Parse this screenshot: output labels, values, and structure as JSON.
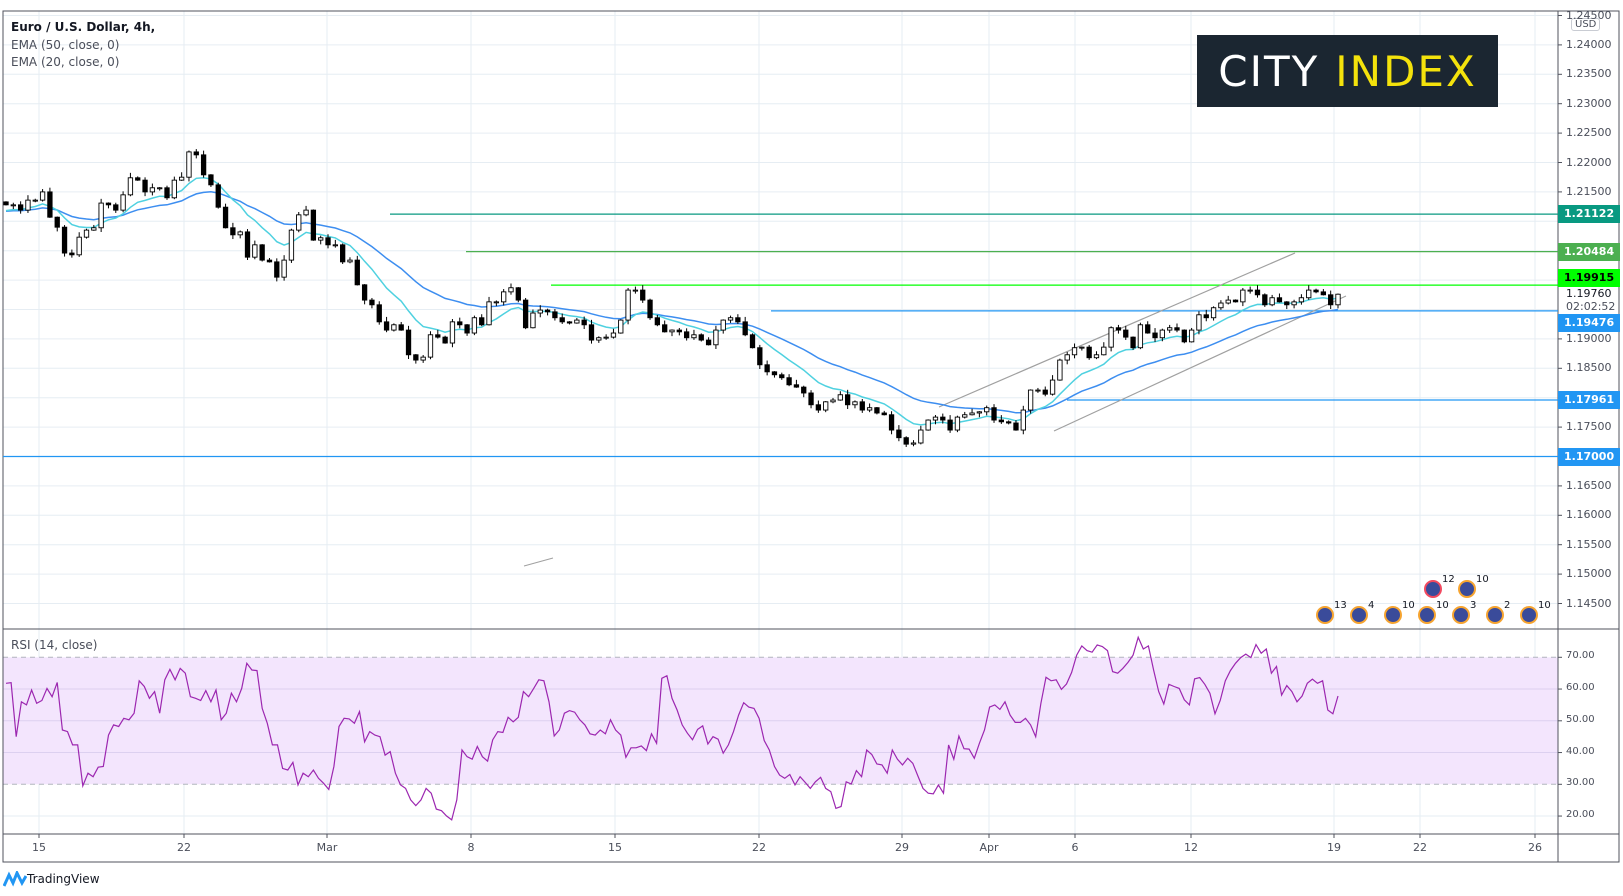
{
  "legend": {
    "title": "Euro / U.S. Dollar, 4h,",
    "ema50": "EMA (50, close, 0)",
    "ema20": "EMA (20, close, 0)",
    "rsi": "RSI (14, close)"
  },
  "logo": {
    "word1": "CITY",
    "word2": "INDEX"
  },
  "currency_badge": "USD",
  "price_axis": {
    "ticks": [
      "1.24500",
      "1.24000",
      "1.23500",
      "1.23000",
      "1.22500",
      "1.22000",
      "1.21500",
      "1.19000",
      "1.18500",
      "1.17500",
      "1.16500",
      "1.16000",
      "1.15500",
      "1.15000",
      "1.14500"
    ],
    "current_price": "1.19760",
    "countdown": "02:02:52"
  },
  "levels": [
    {
      "price": 1.21122,
      "label": "1.21122",
      "color": "#089981",
      "text_color": "#ffffff"
    },
    {
      "price": 1.20484,
      "label": "1.20484",
      "color": "#4caf50",
      "text_color": "#ffffff"
    },
    {
      "price": 1.19915,
      "label": "1.19915",
      "color": "#00ff00",
      "text_color": "#000000"
    },
    {
      "price": 1.19476,
      "label": "1.19476",
      "color": "#2196f3",
      "text_color": "#ffffff"
    },
    {
      "price": 1.17961,
      "label": "1.17961",
      "color": "#2196f3",
      "text_color": "#ffffff"
    },
    {
      "price": 1.17,
      "label": "1.17000",
      "color": "#2196f3",
      "text_color": "#ffffff"
    }
  ],
  "time_axis": [
    "15",
    "22",
    "Mar",
    "8",
    "15",
    "22",
    "29",
    "Apr",
    "6",
    "12",
    "19",
    "22",
    "26"
  ],
  "rsi_axis": [
    "70.00",
    "60.00",
    "50.00",
    "40.00",
    "30.00",
    "20.00"
  ],
  "events": {
    "top": [
      "12",
      "10"
    ],
    "bottom": [
      "13",
      "4",
      "10",
      "10",
      "3",
      "2",
      "10"
    ]
  },
  "footer": {
    "brand": "TradingView"
  },
  "colors": {
    "ema50": "#3d8ef0",
    "ema20": "#4fd1e0",
    "rsi": "#9c27b0",
    "rsi_band": "#f3e5fd",
    "channel": "#a0a0a0",
    "bear": "#000000",
    "bull": "#ffffff"
  },
  "chart_data": {
    "type": "candlestick",
    "symbol": "Euro / U.S. Dollar, 4h",
    "ylim": [
      1.143,
      1.246
    ],
    "closes": [
      1.2128,
      1.2128,
      1.2119,
      1.2136,
      1.2136,
      1.215,
      1.2107,
      1.209,
      1.2046,
      1.2043,
      1.2073,
      1.2085,
      1.2089,
      1.2131,
      1.2128,
      1.2119,
      1.2145,
      1.2174,
      1.217,
      1.215,
      1.2157,
      1.2157,
      1.214,
      1.217,
      1.2175,
      1.2218,
      1.2213,
      1.2179,
      1.2162,
      1.2124,
      1.2089,
      1.2077,
      1.2082,
      1.2039,
      1.206,
      1.2034,
      1.2031,
      1.2005,
      1.2034,
      1.2085,
      1.2111,
      1.2119,
      1.2068,
      1.2072,
      1.206,
      1.206,
      1.2031,
      1.2034,
      1.1992,
      1.1966,
      1.1958,
      1.1929,
      1.1915,
      1.1924,
      1.1915,
      1.1873,
      1.1864,
      1.1869,
      1.1907,
      1.1903,
      1.1893,
      1.1929,
      1.1924,
      1.191,
      1.1936,
      1.1924,
      1.1963,
      1.1963,
      1.198,
      1.1987,
      1.1966,
      1.1919,
      1.1944,
      1.1949,
      1.1946,
      1.1936,
      1.1929,
      1.1927,
      1.1932,
      1.1924,
      1.1898,
      1.1902,
      1.1903,
      1.191,
      1.1932,
      1.1983,
      1.1983,
      1.1966,
      1.1936,
      1.1924,
      1.1912,
      1.1915,
      1.1912,
      1.1902,
      1.1907,
      1.1898,
      1.189,
      1.1915,
      1.1932,
      1.1936,
      1.1929,
      1.1907,
      1.1885,
      1.1856,
      1.1844,
      1.1839,
      1.1834,
      1.1822,
      1.1818,
      1.1808,
      1.1788,
      1.1779,
      1.1793,
      1.1796,
      1.1805,
      1.1788,
      1.1793,
      1.1779,
      1.1783,
      1.1774,
      1.1771,
      1.1745,
      1.1732,
      1.1721,
      1.1723,
      1.1745,
      1.1762,
      1.1767,
      1.1762,
      1.1745,
      1.1767,
      1.1771,
      1.1774,
      1.1776,
      1.1783,
      1.1762,
      1.1759,
      1.1757,
      1.1745,
      1.1779,
      1.1813,
      1.1813,
      1.1806,
      1.183,
      1.1864,
      1.1873,
      1.1885,
      1.1886,
      1.1868,
      1.1873,
      1.1886,
      1.1919,
      1.1915,
      1.1903,
      1.1885,
      1.1924,
      1.191,
      1.1902,
      1.1915,
      1.1919,
      1.1915,
      1.1895,
      1.1915,
      1.1941,
      1.1936,
      1.1953,
      1.1961,
      1.1966,
      1.1963,
      1.1983,
      1.1983,
      1.1975,
      1.1958,
      1.197,
      1.1963,
      1.1958,
      1.1963,
      1.197,
      1.1983,
      1.198,
      1.1975,
      1.1958,
      1.1976
    ],
    "rsi": {
      "ylim": [
        15,
        80
      ],
      "overbought": 70,
      "oversold": 30,
      "values": [
        61.8,
        62,
        45,
        56,
        55,
        59.7,
        55.5,
        56.4,
        60.2,
        57.6,
        62.1,
        47.1,
        46.6,
        42.4,
        42.4,
        29.5,
        33.5,
        32.4,
        35.4,
        35.6,
        45.5,
        48.7,
        48.2,
        50.8,
        50.3,
        52.4,
        62.6,
        60.8,
        57.1,
        59.2,
        52.4,
        62.9,
        66.2,
        62.9,
        66.5,
        65,
        57.6,
        57.1,
        56.4,
        59.5,
        56,
        59.7,
        50.3,
        52.4,
        58.7,
        56,
        60.2,
        68.1,
        66,
        65.8,
        53.9,
        49.2,
        42.4,
        42.4,
        35,
        34.5,
        36.9,
        29.8,
        33.5,
        32.4,
        34.5,
        31.9,
        30.3,
        28.4,
        35.6,
        48.2,
        50.8,
        50.6,
        49.2,
        52.9,
        43.4,
        46.6,
        45.5,
        45,
        39.2,
        40.3,
        33.5,
        29.8,
        28.7,
        25.1,
        23.3,
        25.1,
        28.7,
        27.2,
        22.2,
        21.7,
        20,
        18.8,
        25.1,
        40.8,
        38.7,
        37.9,
        41.9,
        38.7,
        37.3,
        44,
        46.6,
        46.3,
        51.1,
        49.7,
        51.1,
        59.2,
        57.6,
        60.2,
        62.9,
        62.6,
        56,
        45.2,
        47.1,
        52.4,
        53.2,
        52.7,
        50.3,
        48.7,
        45.9,
        45.5,
        47.1,
        45.9,
        50.3,
        47.1,
        45.5,
        38.5,
        41.5,
        41.5,
        42.1,
        40.6,
        45.9,
        42.9,
        63.4,
        64.2,
        57.1,
        53.4,
        48.7,
        46.1,
        44,
        47.3,
        48.4,
        42.7,
        45,
        44.2,
        39.8,
        42.4,
        46.6,
        51.8,
        55.7,
        54.3,
        53.9,
        50.8,
        43.8,
        40.8,
        35.6,
        32.9,
        31.9,
        33.1,
        29.8,
        32.4,
        30.6,
        28.7,
        30.8,
        32.2,
        28.7,
        27.7,
        22.4,
        23,
        30.8,
        30.1,
        34.3,
        32.4,
        40.8,
        39.4,
        36.4,
        36.1,
        33.5,
        40.8,
        37.9,
        36.1,
        38.2,
        36.6,
        32.6,
        28.7,
        27.2,
        27,
        29.8,
        27.2,
        42.4,
        37.9,
        45.2,
        41.2,
        41.1,
        38.2,
        42.9,
        47.1,
        54.3,
        55,
        53.6,
        56,
        51.8,
        49.5,
        49.5,
        50.8,
        48.7,
        45,
        55.5,
        63.7,
        62.6,
        62.9,
        59.9,
        61.6,
        65.2,
        70.7,
        73.6,
        72.1,
        71.6,
        73.9,
        73.4,
        72.1,
        65.5,
        65,
        66.5,
        68.4,
        70.7,
        76.3,
        72.6,
        73.6,
        66,
        59.2,
        55.3,
        61.5,
        60.8,
        60.2,
        56.6,
        55,
        63.2,
        63.6,
        61.5,
        58.7,
        52.2,
        56.4,
        62.6,
        65.8,
        68.1,
        69.9,
        71,
        69.9,
        74,
        71.3,
        72.6,
        65,
        67.1,
        58.1,
        61.1,
        59.2,
        56,
        57.8,
        61.8,
        63.1,
        61.8,
        62.6,
        53.4,
        52.2,
        57.8
      ]
    }
  }
}
